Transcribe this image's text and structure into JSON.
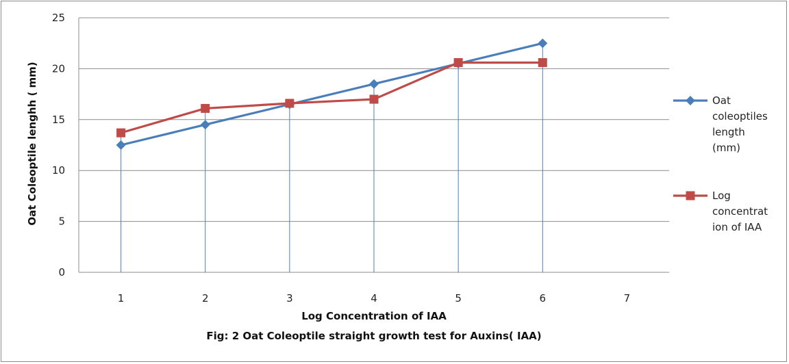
{
  "chart_data": {
    "type": "line",
    "title": "",
    "caption": "Fig: 2 Oat Coleoptile straight growth test for Auxins( IAA)",
    "xlabel": "Log Concentration of IAA",
    "ylabel": "Oat Coleoptile lenghh ( mm)",
    "x": [
      1,
      2,
      3,
      4,
      5,
      6
    ],
    "x_ticks": [
      "1",
      "2",
      "3",
      "4",
      "5",
      "6",
      "7"
    ],
    "xlim": [
      0.5,
      7.5
    ],
    "ylim": [
      0,
      25
    ],
    "y_ticks": [
      "0",
      "5",
      "10",
      "15",
      "20",
      "25"
    ],
    "grid": "horizontal",
    "drop_lines": true,
    "legend_position": "right",
    "series": [
      {
        "name": "Oat coleoptiles length (mm)",
        "legend_lines": [
          "Oat",
          "coleoptiles",
          "length",
          "(mm)"
        ],
        "color": "#4a7ebb",
        "marker": "diamond",
        "values": [
          12.5,
          14.5,
          16.5,
          18.5,
          20.5,
          22.5
        ]
      },
      {
        "name": "Log concentration of IAA",
        "legend_lines": [
          "Log",
          "concentrat",
          "ion of IAA"
        ],
        "color": "#be4b48",
        "marker": "square",
        "values": [
          13.7,
          16.1,
          16.6,
          17.0,
          20.6,
          20.6
        ]
      }
    ]
  }
}
